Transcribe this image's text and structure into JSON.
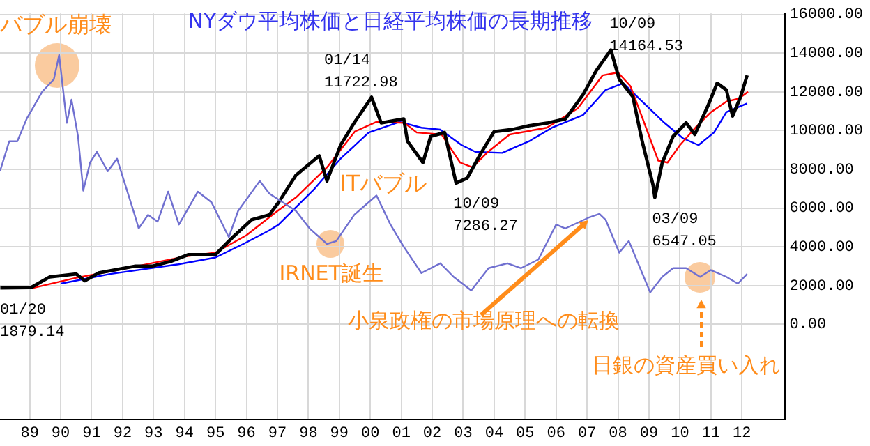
{
  "chart_data": {
    "type": "line",
    "title": "NYダウ平均株価と日経平均株価の長期推移",
    "annotations": [
      {
        "text": "バブル崩壊",
        "x": 1989.95,
        "y": 13900
      },
      {
        "text": "ITバブル",
        "x": 2000.2,
        "y": 6650
      },
      {
        "text": "IRNET誕生",
        "x": 1998.7,
        "y": 4150
      },
      {
        "text": "小泉政権の市場原理への転換",
        "x": 2007.04,
        "y": 5350
      },
      "日銀の資産買い入れ",
      {
        "text": "01/14\n11722.98",
        "x": 2000.04,
        "y": 11722.98
      },
      {
        "text": "10/09\n7286.27",
        "x": 2002.77,
        "y": 7286.27
      },
      {
        "text": "10/09\n14164.53",
        "x": 2007.77,
        "y": 14164.53
      },
      {
        "text": "03/09\n6547.05",
        "x": 2009.19,
        "y": 6547.05
      },
      {
        "text": "01/20\n1879.14",
        "x": 1988.05,
        "y": 1879.14
      }
    ],
    "series": [
      {
        "color": "#7070d0",
        "x": [
          1988.04,
          1988.34,
          1988.6,
          1988.9,
          1989.4,
          1989.78,
          1989.95,
          1990.2,
          1990.35,
          1990.56,
          1990.73,
          1990.95,
          1991.17,
          1991.52,
          1991.82,
          1992.39,
          1992.52,
          1992.82,
          1993.13,
          1993.47,
          1993.82,
          1994.43,
          1994.87,
          1995.43,
          1995.73,
          1996.43,
          1996.74,
          1997.6,
          1998.04,
          1998.6,
          1998.9,
          1999.48,
          2000.2,
          2000.65,
          2001.08,
          2001.65,
          2002.26,
          2002.69,
          2003.26,
          2003.82,
          2004.43,
          2004.87,
          2005.43,
          2006.0,
          2006.3,
          2007.04,
          2007.4,
          2007.6,
          2008.04,
          2008.35,
          2008.78,
          2009.04,
          2009.43,
          2009.78,
          2010.2,
          2010.65,
          2011.0,
          2011.5,
          2011.87,
          2012.17
        ],
        "values": [
          7900,
          9450,
          9450,
          10600,
          12000,
          12650,
          13900,
          10400,
          11600,
          9700,
          6900,
          8350,
          8900,
          7900,
          8550,
          5650,
          4950,
          5650,
          5300,
          6850,
          5150,
          6850,
          6300,
          4500,
          5850,
          7400,
          6750,
          5850,
          4950,
          4150,
          4300,
          5650,
          6650,
          5150,
          4000,
          2650,
          3150,
          2450,
          1750,
          2900,
          3150,
          2900,
          3350,
          5150,
          4950,
          5500,
          5700,
          5400,
          3700,
          4300,
          2650,
          1650,
          2450,
          2900,
          2900,
          2450,
          2800,
          2450,
          2100,
          2600
        ]
      },
      {
        "color": "#000000",
        "x": [
          1988.05,
          1989.04,
          1989.65,
          1990.5,
          1990.78,
          1991.22,
          1992.39,
          1992.95,
          1993.56,
          1994.13,
          1995.0,
          1995.56,
          1996.17,
          1996.74,
          1997.04,
          1997.6,
          1998.35,
          1998.6,
          1999.04,
          1999.48,
          2000.04,
          2000.35,
          2001.08,
          2001.2,
          2001.7,
          2001.95,
          2002.4,
          2002.77,
          2003.13,
          2003.56,
          2004.0,
          2004.56,
          2005.13,
          2005.74,
          2006.3,
          2006.87,
          2007.3,
          2007.77,
          2008.04,
          2008.48,
          2008.78,
          2009.13,
          2009.19,
          2009.43,
          2009.78,
          2010.2,
          2010.48,
          2010.91,
          2011.2,
          2011.5,
          2011.7,
          2011.96,
          2012.17
        ],
        "values": [
          1880,
          1900,
          2450,
          2600,
          2250,
          2650,
          3000,
          3000,
          3250,
          3600,
          3600,
          4500,
          5400,
          5650,
          6300,
          7700,
          8700,
          7400,
          9250,
          10400,
          11720,
          10400,
          10600,
          9450,
          8350,
          9700,
          9900,
          7290,
          7550,
          8800,
          9950,
          10050,
          10250,
          10400,
          10600,
          11850,
          13100,
          14160,
          12650,
          11750,
          9450,
          7200,
          6550,
          8350,
          9700,
          10400,
          9800,
          11300,
          12450,
          12100,
          10750,
          11750,
          12850
        ]
      },
      {
        "color": "#ff0000",
        "x": [
          1989.04,
          1990.5,
          1992.0,
          1994.0,
          1995.0,
          1996.0,
          1997.0,
          1997.6,
          1998.6,
          1999.5,
          2000.2,
          2001.1,
          2001.5,
          2002.3,
          2002.9,
          2003.3,
          2003.8,
          2004.5,
          2005.7,
          2006.7,
          2007.5,
          2008.0,
          2008.4,
          2008.8,
          2009.3,
          2009.6,
          2010.0,
          2010.5,
          2011.0,
          2011.5,
          2011.9,
          2012.2
        ],
        "values": [
          1850,
          2400,
          2850,
          3500,
          3700,
          4600,
          5850,
          6550,
          8100,
          9950,
          10450,
          10400,
          9900,
          9800,
          8350,
          8100,
          8900,
          9800,
          10150,
          11150,
          12850,
          13000,
          12300,
          10600,
          8450,
          8350,
          9250,
          10150,
          10950,
          11500,
          11650,
          12000
        ]
      },
      {
        "color": "#0000ff",
        "x": [
          1990.0,
          1991.6,
          1993.8,
          1995.0,
          1995.9,
          1996.74,
          1997.04,
          1998.2,
          1999.04,
          1999.95,
          2000.95,
          2001.65,
          2002.26,
          2002.95,
          2003.4,
          2004.26,
          2005.13,
          2005.87,
          2006.87,
          2007.6,
          2008.17,
          2008.78,
          2009.5,
          2010.1,
          2010.6,
          2011.1,
          2011.5,
          2012.17
        ],
        "values": [
          2100,
          2600,
          3100,
          3450,
          4150,
          4850,
          5150,
          7000,
          8550,
          9900,
          10450,
          10150,
          10050,
          9250,
          8900,
          8850,
          9450,
          10150,
          10800,
          12100,
          12450,
          11500,
          10400,
          9600,
          9250,
          9900,
          10950,
          11400
        ]
      }
    ],
    "xlim": [
      1988.04,
      2013.4
    ],
    "xticks": [
      {
        "value": 1989,
        "label": "89"
      },
      {
        "value": 1990,
        "label": "90"
      },
      {
        "value": 1991,
        "label": "91"
      },
      {
        "value": 1992,
        "label": "92"
      },
      {
        "value": 1993,
        "label": "93"
      },
      {
        "value": 1994,
        "label": "94"
      },
      {
        "value": 1995,
        "label": "95"
      },
      {
        "value": 1996,
        "label": "96"
      },
      {
        "value": 1997,
        "label": "97"
      },
      {
        "value": 1998,
        "label": "98"
      },
      {
        "value": 1999,
        "label": "99"
      },
      {
        "value": 2000,
        "label": "00"
      },
      {
        "value": 2001,
        "label": "01"
      },
      {
        "value": 2002,
        "label": "02"
      },
      {
        "value": 2003,
        "label": "03"
      },
      {
        "value": 2004,
        "label": "04"
      },
      {
        "value": 2005,
        "label": "05"
      },
      {
        "value": 2006,
        "label": "06"
      },
      {
        "value": 2007,
        "label": "07"
      },
      {
        "value": 2008,
        "label": "08"
      },
      {
        "value": 2009,
        "label": "09"
      },
      {
        "value": 2010,
        "label": "10"
      },
      {
        "value": 2011,
        "label": "11"
      },
      {
        "value": 2012,
        "label": "12"
      }
    ],
    "ylim": [
      -4900,
      16050
    ],
    "yticks": [
      {
        "value": 0,
        "label": "0.00"
      },
      {
        "value": 2000,
        "label": "2000.00"
      },
      {
        "value": 4000,
        "label": "4000.00"
      },
      {
        "value": 6000,
        "label": "6000.00"
      },
      {
        "value": 8000,
        "label": "8000.00"
      },
      {
        "value": 10000,
        "label": "10000.00"
      },
      {
        "value": 12000,
        "label": "12000.00"
      },
      {
        "value": 14000,
        "label": "14000.00"
      },
      {
        "value": 16000,
        "label": "16000.00"
      }
    ],
    "grid": true,
    "legend": false,
    "marker": "none"
  }
}
